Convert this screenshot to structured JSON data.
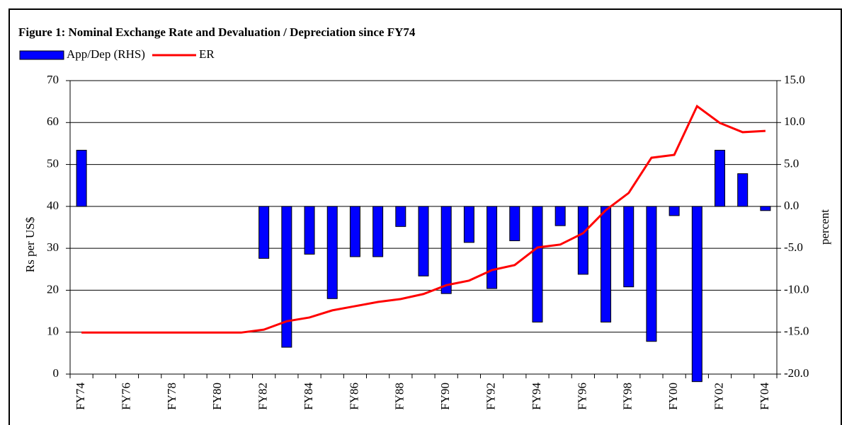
{
  "chart_data": {
    "type": "bar-line",
    "title": "Figure 1: Nominal Exchange Rate and Devaluation / Depreciation since FY74",
    "categories": [
      "FY74",
      null,
      "FY76",
      null,
      "FY78",
      null,
      "FY80",
      null,
      "FY82",
      null,
      "FY84",
      null,
      "FY86",
      null,
      "FY88",
      null,
      "FY90",
      null,
      "FY92",
      null,
      "FY94",
      null,
      "FY96",
      null,
      "FY98",
      null,
      "FY00",
      null,
      "FY02",
      null,
      "FY04"
    ],
    "ylabel": "Rs per US$",
    "y2label": "percent",
    "ylim": [
      0,
      70
    ],
    "yticks": [
      0,
      10,
      20,
      30,
      40,
      50,
      60,
      70
    ],
    "y2lim": [
      -20,
      15
    ],
    "y2ticks": [
      {
        "value": -20,
        "label": "-20.0"
      },
      {
        "value": -15,
        "label": "-15.0"
      },
      {
        "value": -10,
        "label": "-10.0"
      },
      {
        "value": -5,
        "label": "-5.0"
      },
      {
        "value": 0,
        "label": "0.0"
      },
      {
        "value": 5,
        "label": "5.0"
      },
      {
        "value": 10,
        "label": "10.0"
      },
      {
        "value": 15,
        "label": "15.0"
      }
    ],
    "grid": true,
    "legend": "top-left",
    "series": [
      {
        "name": "App/Dep (RHS)",
        "type": "bar",
        "axis": "y2",
        "color": "#0000ff",
        "values": [
          6.7,
          null,
          null,
          null,
          null,
          null,
          null,
          null,
          -6.2,
          -16.8,
          -5.7,
          -11.0,
          -6.0,
          -6.0,
          -2.4,
          -8.3,
          -10.4,
          -4.3,
          -9.8,
          -4.1,
          -13.8,
          -2.3,
          -8.1,
          -13.8,
          -9.6,
          -16.1,
          -1.1,
          -20.9,
          6.7,
          3.9,
          -0.5
        ]
      },
      {
        "name": "ER",
        "type": "line",
        "color": "#ff0000",
        "values": [
          9.9,
          9.9,
          9.9,
          9.9,
          9.9,
          9.9,
          9.9,
          9.9,
          10.6,
          12.6,
          13.5,
          15.2,
          16.2,
          17.2,
          17.9,
          19.1,
          21.2,
          22.3,
          24.8,
          26.0,
          30.2,
          30.9,
          33.6,
          39.1,
          43.2,
          51.6,
          52.3,
          63.9,
          59.9,
          57.7,
          58.0
        ]
      }
    ]
  }
}
